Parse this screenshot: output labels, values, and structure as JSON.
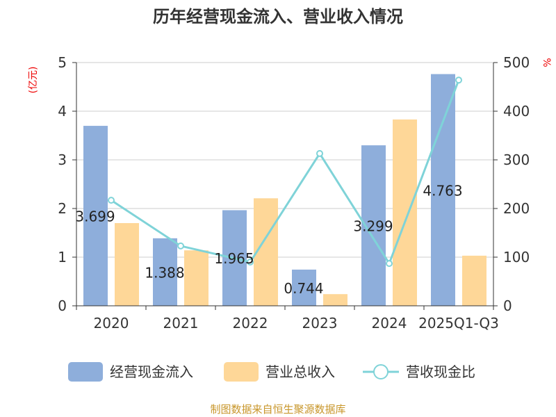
{
  "chart_data": {
    "type": "bar",
    "title": "历年经营现金流入、营业收入情况",
    "ylabel_left": "(亿元)",
    "ylabel_right": "%",
    "ylim_left": [
      0,
      5
    ],
    "ylim_right": [
      0,
      500
    ],
    "left_ticks": [
      "0",
      "1",
      "2",
      "3",
      "4",
      "5"
    ],
    "right_ticks": [
      "0",
      "100",
      "200",
      "300",
      "400",
      "500"
    ],
    "categories": [
      "2020",
      "2021",
      "2022",
      "2023",
      "2024",
      "2025Q1-Q3"
    ],
    "series": [
      {
        "name": "经营现金流入",
        "type": "bar",
        "axis": "left",
        "color": "#8eaedb",
        "values": [
          3.699,
          1.388,
          1.965,
          0.744,
          3.299,
          4.763
        ],
        "labels": [
          "3.699",
          "1.388",
          "1.965",
          "0.744",
          "3.299",
          "4.763"
        ]
      },
      {
        "name": "营业总收入",
        "type": "bar",
        "axis": "left",
        "color": "#fed798",
        "values": [
          1.7,
          1.14,
          2.21,
          0.24,
          3.83,
          1.03
        ]
      },
      {
        "name": "营收现金比",
        "type": "line",
        "axis": "right",
        "color": "#7fd3d8",
        "values": [
          217,
          123,
          90,
          313,
          87,
          464
        ]
      }
    ],
    "source": "制图数据来自恒生聚源数据库"
  }
}
